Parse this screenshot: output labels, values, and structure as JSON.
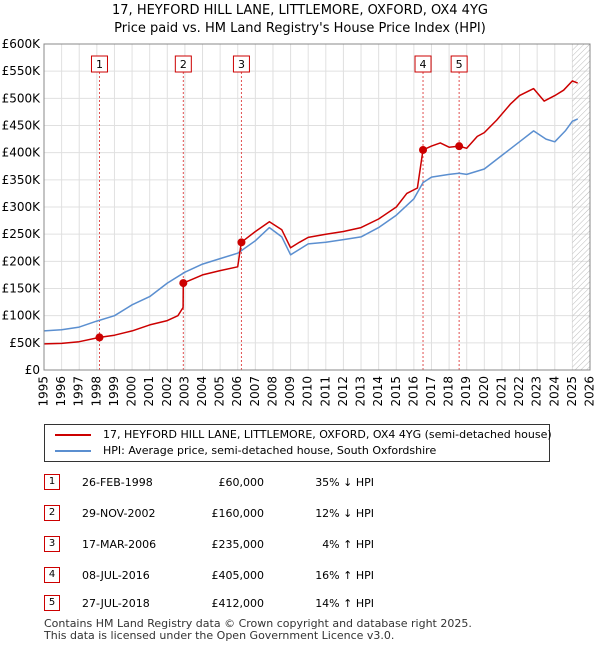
{
  "title_line1": "17, HEYFORD HILL LANE, LITTLEMORE, OXFORD, OX4 4YG",
  "title_line2": "Price paid vs. HM Land Registry's House Price Index (HPI)",
  "legend": {
    "property": "17, HEYFORD HILL LANE, LITTLEMORE, OXFORD, OX4 4YG (semi-detached house)",
    "hpi": "HPI: Average price, semi-detached house, South Oxfordshire",
    "property_color": "#cc0000",
    "hpi_color": "#5b8fd0"
  },
  "transactions": [
    {
      "num": "1",
      "date": "26-FEB-1998",
      "price": "£60,000",
      "hpi": "35% ↓ HPI"
    },
    {
      "num": "2",
      "date": "29-NOV-2002",
      "price": "£160,000",
      "hpi": "12% ↓ HPI"
    },
    {
      "num": "3",
      "date": "17-MAR-2006",
      "price": "£235,000",
      "hpi": "4% ↑ HPI"
    },
    {
      "num": "4",
      "date": "08-JUL-2016",
      "price": "£405,000",
      "hpi": "16% ↑ HPI"
    },
    {
      "num": "5",
      "date": "27-JUL-2018",
      "price": "£412,000",
      "hpi": "14% ↑ HPI"
    }
  ],
  "footer_line1": "Contains HM Land Registry data © Crown copyright and database right 2025.",
  "footer_line2": "This data is licensed under the Open Government Licence v3.0.",
  "chart_data": {
    "type": "line",
    "title": "17, HEYFORD HILL LANE, LITTLEMORE, OXFORD, OX4 4YG — Price paid vs. HM Land Registry's House Price Index (HPI)",
    "xlim": [
      1995,
      2026
    ],
    "ylim": [
      0,
      600000
    ],
    "x_ticks": [
      1995,
      1996,
      1997,
      1998,
      1999,
      2000,
      2001,
      2002,
      2003,
      2004,
      2005,
      2006,
      2007,
      2008,
      2009,
      2010,
      2011,
      2012,
      2013,
      2014,
      2015,
      2016,
      2017,
      2018,
      2019,
      2020,
      2021,
      2022,
      2023,
      2024,
      2025,
      2026
    ],
    "y_ticks": [
      {
        "v": 0,
        "label": "£0"
      },
      {
        "v": 50000,
        "label": "£50K"
      },
      {
        "v": 100000,
        "label": "£100K"
      },
      {
        "v": 150000,
        "label": "£150K"
      },
      {
        "v": 200000,
        "label": "£200K"
      },
      {
        "v": 250000,
        "label": "£250K"
      },
      {
        "v": 300000,
        "label": "£300K"
      },
      {
        "v": 350000,
        "label": "£350K"
      },
      {
        "v": 400000,
        "label": "£400K"
      },
      {
        "v": 450000,
        "label": "£450K"
      },
      {
        "v": 500000,
        "label": "£500K"
      },
      {
        "v": 550000,
        "label": "£550K"
      },
      {
        "v": 600000,
        "label": "£600K"
      }
    ],
    "series": [
      {
        "name": "17, HEYFORD HILL LANE, LITTLEMORE, OXFORD, OX4 4YG (semi-detached house)",
        "color": "#cc0000",
        "points": [
          [
            1995.0,
            48000
          ],
          [
            1996.0,
            49000
          ],
          [
            1997.0,
            52000
          ],
          [
            1998.15,
            60000
          ],
          [
            1999.0,
            64000
          ],
          [
            2000.0,
            72000
          ],
          [
            2001.0,
            83000
          ],
          [
            2002.0,
            91000
          ],
          [
            2002.6,
            100000
          ],
          [
            2002.9,
            115000
          ],
          [
            2002.91,
            160000
          ],
          [
            2003.5,
            168000
          ],
          [
            2004.0,
            175000
          ],
          [
            2005.0,
            183000
          ],
          [
            2006.0,
            190000
          ],
          [
            2006.2,
            235000
          ],
          [
            2007.0,
            255000
          ],
          [
            2007.8,
            273000
          ],
          [
            2008.5,
            258000
          ],
          [
            2009.0,
            225000
          ],
          [
            2009.5,
            235000
          ],
          [
            2010.0,
            244000
          ],
          [
            2011.0,
            250000
          ],
          [
            2012.0,
            255000
          ],
          [
            2013.0,
            262000
          ],
          [
            2014.0,
            278000
          ],
          [
            2015.0,
            300000
          ],
          [
            2015.6,
            325000
          ],
          [
            2016.2,
            335000
          ],
          [
            2016.52,
            405000
          ],
          [
            2017.0,
            412000
          ],
          [
            2017.5,
            418000
          ],
          [
            2018.0,
            410000
          ],
          [
            2018.57,
            412000
          ],
          [
            2019.0,
            408000
          ],
          [
            2019.6,
            430000
          ],
          [
            2020.0,
            437000
          ],
          [
            2020.7,
            460000
          ],
          [
            2021.5,
            490000
          ],
          [
            2022.0,
            505000
          ],
          [
            2022.8,
            518000
          ],
          [
            2023.4,
            495000
          ],
          [
            2024.0,
            505000
          ],
          [
            2024.5,
            515000
          ],
          [
            2025.0,
            532000
          ],
          [
            2025.3,
            528000
          ]
        ]
      },
      {
        "name": "HPI: Average price, semi-detached house, South Oxfordshire",
        "color": "#5b8fd0",
        "points": [
          [
            1995.0,
            72000
          ],
          [
            1996.0,
            74000
          ],
          [
            1997.0,
            79000
          ],
          [
            1998.0,
            90000
          ],
          [
            1999.0,
            100000
          ],
          [
            2000.0,
            120000
          ],
          [
            2001.0,
            135000
          ],
          [
            2002.0,
            160000
          ],
          [
            2003.0,
            180000
          ],
          [
            2004.0,
            195000
          ],
          [
            2005.0,
            205000
          ],
          [
            2006.0,
            215000
          ],
          [
            2007.0,
            238000
          ],
          [
            2007.8,
            262000
          ],
          [
            2008.5,
            245000
          ],
          [
            2009.0,
            212000
          ],
          [
            2009.5,
            222000
          ],
          [
            2010.0,
            232000
          ],
          [
            2011.0,
            235000
          ],
          [
            2012.0,
            240000
          ],
          [
            2013.0,
            245000
          ],
          [
            2014.0,
            262000
          ],
          [
            2015.0,
            285000
          ],
          [
            2016.0,
            315000
          ],
          [
            2016.52,
            345000
          ],
          [
            2017.0,
            355000
          ],
          [
            2018.0,
            360000
          ],
          [
            2018.57,
            362000
          ],
          [
            2019.0,
            360000
          ],
          [
            2020.0,
            370000
          ],
          [
            2021.0,
            395000
          ],
          [
            2022.0,
            420000
          ],
          [
            2022.8,
            440000
          ],
          [
            2023.5,
            425000
          ],
          [
            2024.0,
            420000
          ],
          [
            2024.6,
            440000
          ],
          [
            2025.0,
            458000
          ],
          [
            2025.3,
            462000
          ]
        ]
      }
    ],
    "markers": [
      {
        "label": "1",
        "x": 1998.15,
        "y": 60000
      },
      {
        "label": "2",
        "x": 2002.91,
        "y": 160000
      },
      {
        "label": "3",
        "x": 2006.21,
        "y": 235000
      },
      {
        "label": "4",
        "x": 2016.52,
        "y": 405000
      },
      {
        "label": "5",
        "x": 2018.57,
        "y": 412000
      }
    ],
    "forecast_hatch_start": 2025.0
  }
}
